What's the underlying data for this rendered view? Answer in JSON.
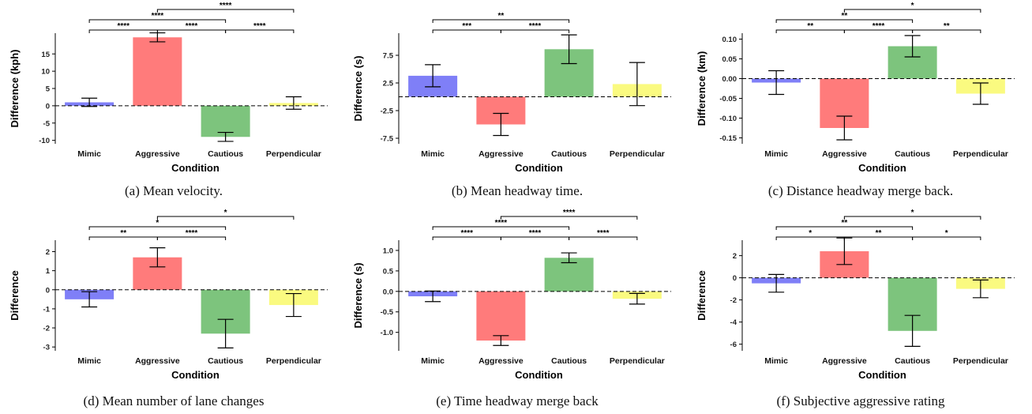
{
  "figure": {
    "bar_colors": {
      "Mimic": "#7f7ff7",
      "Aggressive": "#ff7b7b",
      "Cautious": "#7dc47d",
      "Perpendicular": "#fafa80"
    }
  },
  "chart_data": [
    {
      "id": "a",
      "type": "bar",
      "caption": "(a) Mean velocity.",
      "xlabel": "Condition",
      "ylabel": "Difference (kph)",
      "categories": [
        "Mimic",
        "Aggressive",
        "Cautious",
        "Perpendicular"
      ],
      "values": [
        1.0,
        19.8,
        -9.0,
        0.8
      ],
      "errors": [
        1.2,
        1.3,
        1.3,
        1.8
      ],
      "ylim": [
        -11,
        21
      ],
      "yticks": [
        -10,
        -5,
        0,
        5,
        10,
        15
      ],
      "ytick_labels": [
        "-10",
        "-5",
        "0",
        "5",
        "10",
        "15"
      ],
      "significance": [
        {
          "from": 0,
          "to": 1,
          "label": "****",
          "level": 0
        },
        {
          "from": 1,
          "to": 2,
          "label": "****",
          "level": 0
        },
        {
          "from": 2,
          "to": 3,
          "label": "****",
          "level": 0
        },
        {
          "from": 0,
          "to": 2,
          "label": "****",
          "level": 1
        },
        {
          "from": 1,
          "to": 3,
          "label": "****",
          "level": 2
        }
      ]
    },
    {
      "id": "b",
      "type": "bar",
      "caption": "(b) Mean headway time.",
      "xlabel": "Condition",
      "ylabel": "Difference (s)",
      "categories": [
        "Mimic",
        "Aggressive",
        "Cautious",
        "Perpendicular"
      ],
      "values": [
        3.8,
        -5.0,
        8.6,
        2.3
      ],
      "errors": [
        2.0,
        2.0,
        2.6,
        3.9
      ],
      "ylim": [
        -8.5,
        11.5
      ],
      "yticks": [
        -7.5,
        -2.5,
        2.5,
        7.5
      ],
      "ytick_labels": [
        "-7.5",
        "-2.5",
        "2.5",
        "7.5"
      ],
      "significance": [
        {
          "from": 0,
          "to": 1,
          "label": "***",
          "level": 0
        },
        {
          "from": 1,
          "to": 2,
          "label": "****",
          "level": 0
        },
        {
          "from": 0,
          "to": 2,
          "label": "**",
          "level": 1
        }
      ]
    },
    {
      "id": "c",
      "type": "bar",
      "caption": "(c) Distance headway merge back.",
      "xlabel": "Condition",
      "ylabel": "Difference (km)",
      "categories": [
        "Mimic",
        "Aggressive",
        "Cautious",
        "Perpendicular"
      ],
      "values": [
        -0.01,
        -0.125,
        0.082,
        -0.038
      ],
      "errors": [
        0.03,
        0.03,
        0.027,
        0.027
      ],
      "ylim": [
        -0.165,
        0.115
      ],
      "yticks": [
        -0.15,
        -0.1,
        -0.05,
        0.0,
        0.05,
        0.1
      ],
      "ytick_labels": [
        "-0.15",
        "-0.10",
        "-0.05",
        "0.00",
        "0.05",
        "0.10"
      ],
      "significance": [
        {
          "from": 0,
          "to": 1,
          "label": "**",
          "level": 0
        },
        {
          "from": 1,
          "to": 2,
          "label": "****",
          "level": 0
        },
        {
          "from": 2,
          "to": 3,
          "label": "**",
          "level": 0
        },
        {
          "from": 0,
          "to": 2,
          "label": "**",
          "level": 1
        },
        {
          "from": 1,
          "to": 3,
          "label": "*",
          "level": 2
        }
      ]
    },
    {
      "id": "d",
      "type": "bar",
      "caption": "(d) Mean number of lane changes",
      "xlabel": "Condition",
      "ylabel": "Difference",
      "categories": [
        "Mimic",
        "Aggressive",
        "Cautious",
        "Perpendicular"
      ],
      "values": [
        -0.5,
        1.7,
        -2.3,
        -0.8
      ],
      "errors": [
        0.4,
        0.5,
        0.75,
        0.6
      ],
      "ylim": [
        -3.2,
        2.6
      ],
      "yticks": [
        -3,
        -2,
        -1,
        0,
        1,
        2
      ],
      "ytick_labels": [
        "-3",
        "-2",
        "-1",
        "0",
        "1",
        "2"
      ],
      "significance": [
        {
          "from": 0,
          "to": 1,
          "label": "**",
          "level": 0
        },
        {
          "from": 1,
          "to": 2,
          "label": "****",
          "level": 0
        },
        {
          "from": 0,
          "to": 2,
          "label": "*",
          "level": 1
        },
        {
          "from": 1,
          "to": 3,
          "label": "*",
          "level": 2
        }
      ]
    },
    {
      "id": "e",
      "type": "bar",
      "caption": "(e) Time headway merge back",
      "xlabel": "Condition",
      "ylabel": "Difference (s)",
      "categories": [
        "Mimic",
        "Aggressive",
        "Cautious",
        "Perpendicular"
      ],
      "values": [
        -0.12,
        -1.2,
        0.82,
        -0.18
      ],
      "errors": [
        0.13,
        0.12,
        0.12,
        0.13
      ],
      "ylim": [
        -1.45,
        1.25
      ],
      "yticks": [
        -1.0,
        -0.5,
        0.0,
        0.5,
        1.0
      ],
      "ytick_labels": [
        "-1.0",
        "-0.5",
        "0.0",
        "0.5",
        "1.0"
      ],
      "significance": [
        {
          "from": 0,
          "to": 1,
          "label": "****",
          "level": 0
        },
        {
          "from": 1,
          "to": 2,
          "label": "****",
          "level": 0
        },
        {
          "from": 2,
          "to": 3,
          "label": "****",
          "level": 0
        },
        {
          "from": 0,
          "to": 2,
          "label": "****",
          "level": 1
        },
        {
          "from": 1,
          "to": 3,
          "label": "****",
          "level": 2
        }
      ]
    },
    {
      "id": "f",
      "type": "bar",
      "caption": "(f) Subjective aggressive rating",
      "xlabel": "Condition",
      "ylabel": "Difference",
      "categories": [
        "Mimic",
        "Aggressive",
        "Cautious",
        "Perpendicular"
      ],
      "values": [
        -0.5,
        2.4,
        -4.8,
        -1.0
      ],
      "errors": [
        0.8,
        1.2,
        1.4,
        0.8
      ],
      "ylim": [
        -6.6,
        3.4
      ],
      "yticks": [
        -6,
        -4,
        -2,
        0,
        2
      ],
      "ytick_labels": [
        "-6",
        "-4",
        "-2",
        "0",
        "2"
      ],
      "significance": [
        {
          "from": 0,
          "to": 1,
          "label": "*",
          "level": 0
        },
        {
          "from": 1,
          "to": 2,
          "label": "**",
          "level": 0
        },
        {
          "from": 2,
          "to": 3,
          "label": "*",
          "level": 0
        },
        {
          "from": 0,
          "to": 2,
          "label": "**",
          "level": 1
        },
        {
          "from": 1,
          "to": 3,
          "label": "*",
          "level": 2
        }
      ]
    }
  ]
}
